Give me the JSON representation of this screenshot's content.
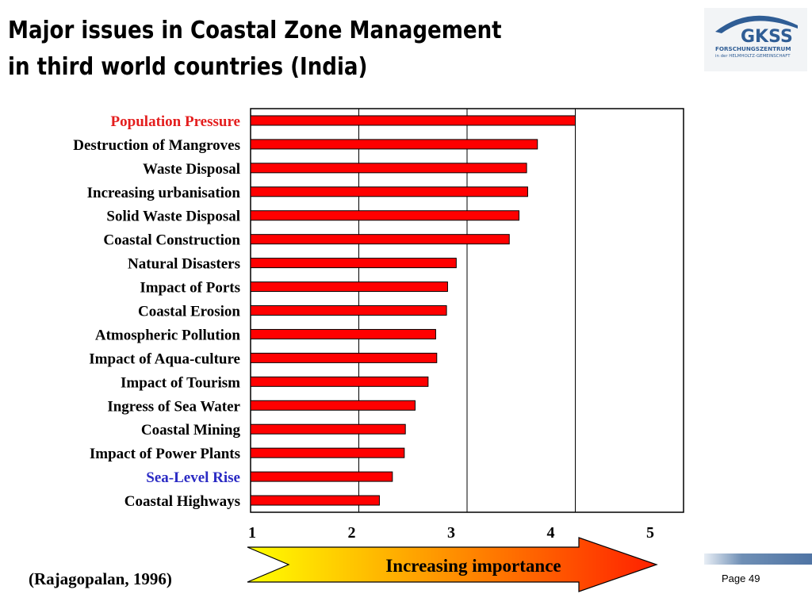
{
  "slide": {
    "title_line1": "Major issues in Coastal Zone Management",
    "title_line2": "in third world countries (India)",
    "citation": "(Rajagopalan, 1996)",
    "page_label": "Page 49",
    "logo": {
      "name": "GKSS",
      "line1": "FORSCHUNGSZENTRUM",
      "line2": "in der HELMHOLTZ-GEMEINSCHAFT"
    }
  },
  "chart_data": {
    "type": "bar",
    "orientation": "horizontal",
    "categories": [
      "Population Pressure",
      "Destruction of Mangroves",
      "Waste Disposal",
      "Increasing urbanisation",
      "Solid Waste Disposal",
      "Coastal Construction",
      "Natural Disasters",
      "Impact of Ports",
      "Coastal Erosion",
      "Atmospheric Pollution",
      "Impact of Aqua-culture",
      "Impact of Tourism",
      "Ingress of Sea Water",
      "Coastal Mining",
      "Impact of Power Plants",
      "Sea-Level Rise",
      "Coastal Highways"
    ],
    "values": [
      4.0,
      3.65,
      3.55,
      3.56,
      3.48,
      3.39,
      2.9,
      2.82,
      2.81,
      2.71,
      2.72,
      2.64,
      2.52,
      2.43,
      2.42,
      2.31,
      2.19
    ],
    "label_colors": {
      "Population Pressure": "#e41e1e",
      "Sea-Level Rise": "#2b2bc4"
    },
    "default_label_color": "#000000",
    "bar_color": "#ff0000",
    "xlim": [
      1,
      5
    ],
    "xticks": [
      "1",
      "2",
      "3",
      "4",
      "5"
    ],
    "gridlines_at": [
      2,
      3,
      4
    ],
    "arrow_label": "Increasing importance",
    "arrow_gradient": [
      "#ffff00",
      "#ff2000"
    ]
  }
}
